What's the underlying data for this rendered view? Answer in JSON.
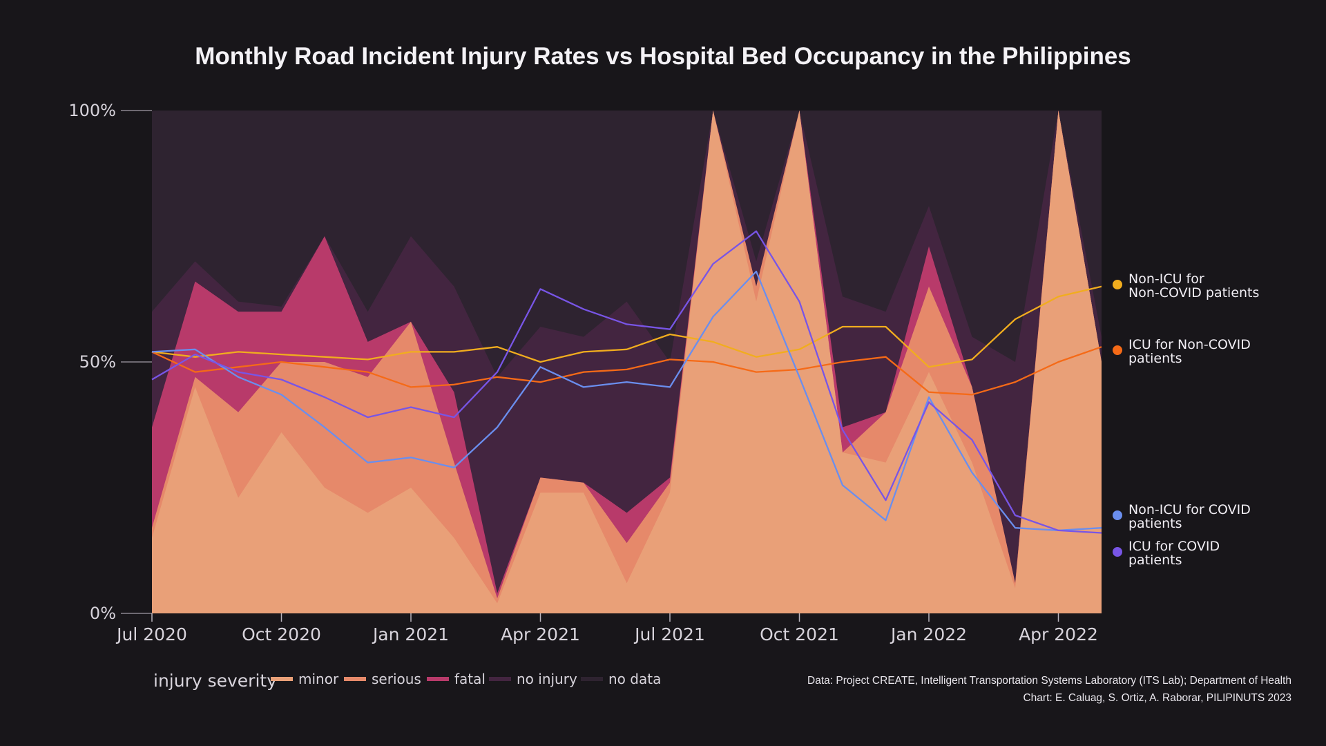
{
  "title": "Monthly Road Incident Injury Rates vs Hospital Bed Occupancy in the Philippines",
  "source_line1": "Data: Project CREATE, Intelligent Transportation Systems Laboratory (ITS Lab); Department of Health",
  "source_line2": "Chart: E. Caluag, S. Ortiz, A. Raborar, PILIPINUTS 2023",
  "colors": {
    "background": "#18161a",
    "minor": "#e9a078",
    "serious": "#e6896a",
    "fatal": "#b83a6a",
    "no_injury": "#432540",
    "no_data": "#2e2330",
    "non_icu_non_covid": "#f1ad1e",
    "icu_non_covid": "#f56a17",
    "non_icu_covid": "#6a8eee",
    "icu_covid": "#7855e6"
  },
  "chart_data": {
    "type": "area",
    "x": [
      "2020-07",
      "2020-08",
      "2020-09",
      "2020-10",
      "2020-11",
      "2020-12",
      "2021-01",
      "2021-02",
      "2021-03",
      "2021-04",
      "2021-05",
      "2021-06",
      "2021-07",
      "2021-08",
      "2021-09",
      "2021-10",
      "2021-11",
      "2021-12",
      "2022-01",
      "2022-02",
      "2022-03",
      "2022-04",
      "2022-05"
    ],
    "x_tick_labels": [
      {
        "date": "2020-07",
        "label": "Jul 2020"
      },
      {
        "date": "2020-10",
        "label": "Oct 2020"
      },
      {
        "date": "2021-01",
        "label": "Jan 2021"
      },
      {
        "date": "2021-04",
        "label": "Apr 2021"
      },
      {
        "date": "2021-07",
        "label": "Jul 2021"
      },
      {
        "date": "2021-10",
        "label": "Oct 2021"
      },
      {
        "date": "2022-01",
        "label": "Jan 2022"
      },
      {
        "date": "2022-04",
        "label": "Apr 2022"
      }
    ],
    "y_tick_labels": [
      {
        "value": 0,
        "label": "0%"
      },
      {
        "value": 50,
        "label": "50%"
      },
      {
        "value": 100,
        "label": "100%"
      }
    ],
    "ylim": [
      0,
      100
    ],
    "grid": false,
    "legend_title": "injury severity",
    "legend_position": "bottom-left",
    "stacked_cumulative_tops": [
      {
        "name": "minor",
        "values": [
          15,
          45,
          23,
          36,
          25,
          20,
          25,
          15,
          2,
          24,
          24,
          6,
          24,
          100,
          62,
          100,
          32,
          30,
          48,
          30,
          5,
          100,
          50
        ]
      },
      {
        "name": "serious",
        "values": [
          17,
          47,
          40,
          50,
          50,
          47,
          58,
          30,
          3,
          27,
          26,
          14,
          26,
          100,
          65,
          100,
          32,
          40,
          65,
          45,
          6,
          100,
          50
        ]
      },
      {
        "name": "fatal",
        "values": [
          37,
          66,
          60,
          60,
          75,
          54,
          58,
          44,
          4,
          27,
          26,
          20,
          27,
          100,
          65,
          100,
          37,
          40,
          73,
          45,
          6,
          100,
          50
        ]
      },
      {
        "name": "no injury",
        "values": [
          60,
          70,
          62,
          61,
          75,
          60,
          75,
          65,
          47,
          57,
          55,
          62,
          50,
          100,
          70,
          100,
          63,
          60,
          81,
          55,
          50,
          100,
          55
        ]
      },
      {
        "name": "no data",
        "values": [
          100,
          100,
          100,
          100,
          100,
          100,
          100,
          100,
          100,
          100,
          100,
          100,
          100,
          100,
          100,
          100,
          100,
          100,
          100,
          100,
          100,
          100,
          100
        ]
      }
    ],
    "line_series": [
      {
        "name": "Non-ICU for\nNon-COVID patients",
        "values": [
          52,
          51,
          52,
          51.5,
          51,
          50.5,
          52,
          52,
          53,
          50,
          52,
          52.5,
          55.5,
          54,
          51,
          52.5,
          57,
          57,
          49,
          50.5,
          58.5,
          63,
          65
        ]
      },
      {
        "name": "ICU for Non-COVID\npatients",
        "values": [
          52,
          48,
          49,
          50,
          49,
          48,
          45,
          45.5,
          47,
          46,
          48,
          48.5,
          50.5,
          50,
          48,
          48.5,
          50,
          51,
          44,
          43.5,
          46,
          50,
          53
        ]
      },
      {
        "name": "Non-ICU for COVID\npatients",
        "values": [
          52,
          52.5,
          47,
          43.5,
          37,
          30,
          31,
          29,
          37,
          49,
          45,
          46,
          45,
          59,
          68,
          47,
          25.5,
          18.5,
          43,
          28,
          17,
          16.5,
          17
        ]
      },
      {
        "name": "ICU for COVID\npatients",
        "values": [
          46.5,
          51.5,
          48,
          46.5,
          43,
          39,
          41,
          39,
          48,
          64.5,
          60.5,
          57.5,
          56.5,
          69.5,
          76,
          62,
          36.5,
          22.5,
          42,
          34.5,
          19.5,
          16.5,
          16
        ]
      }
    ]
  }
}
